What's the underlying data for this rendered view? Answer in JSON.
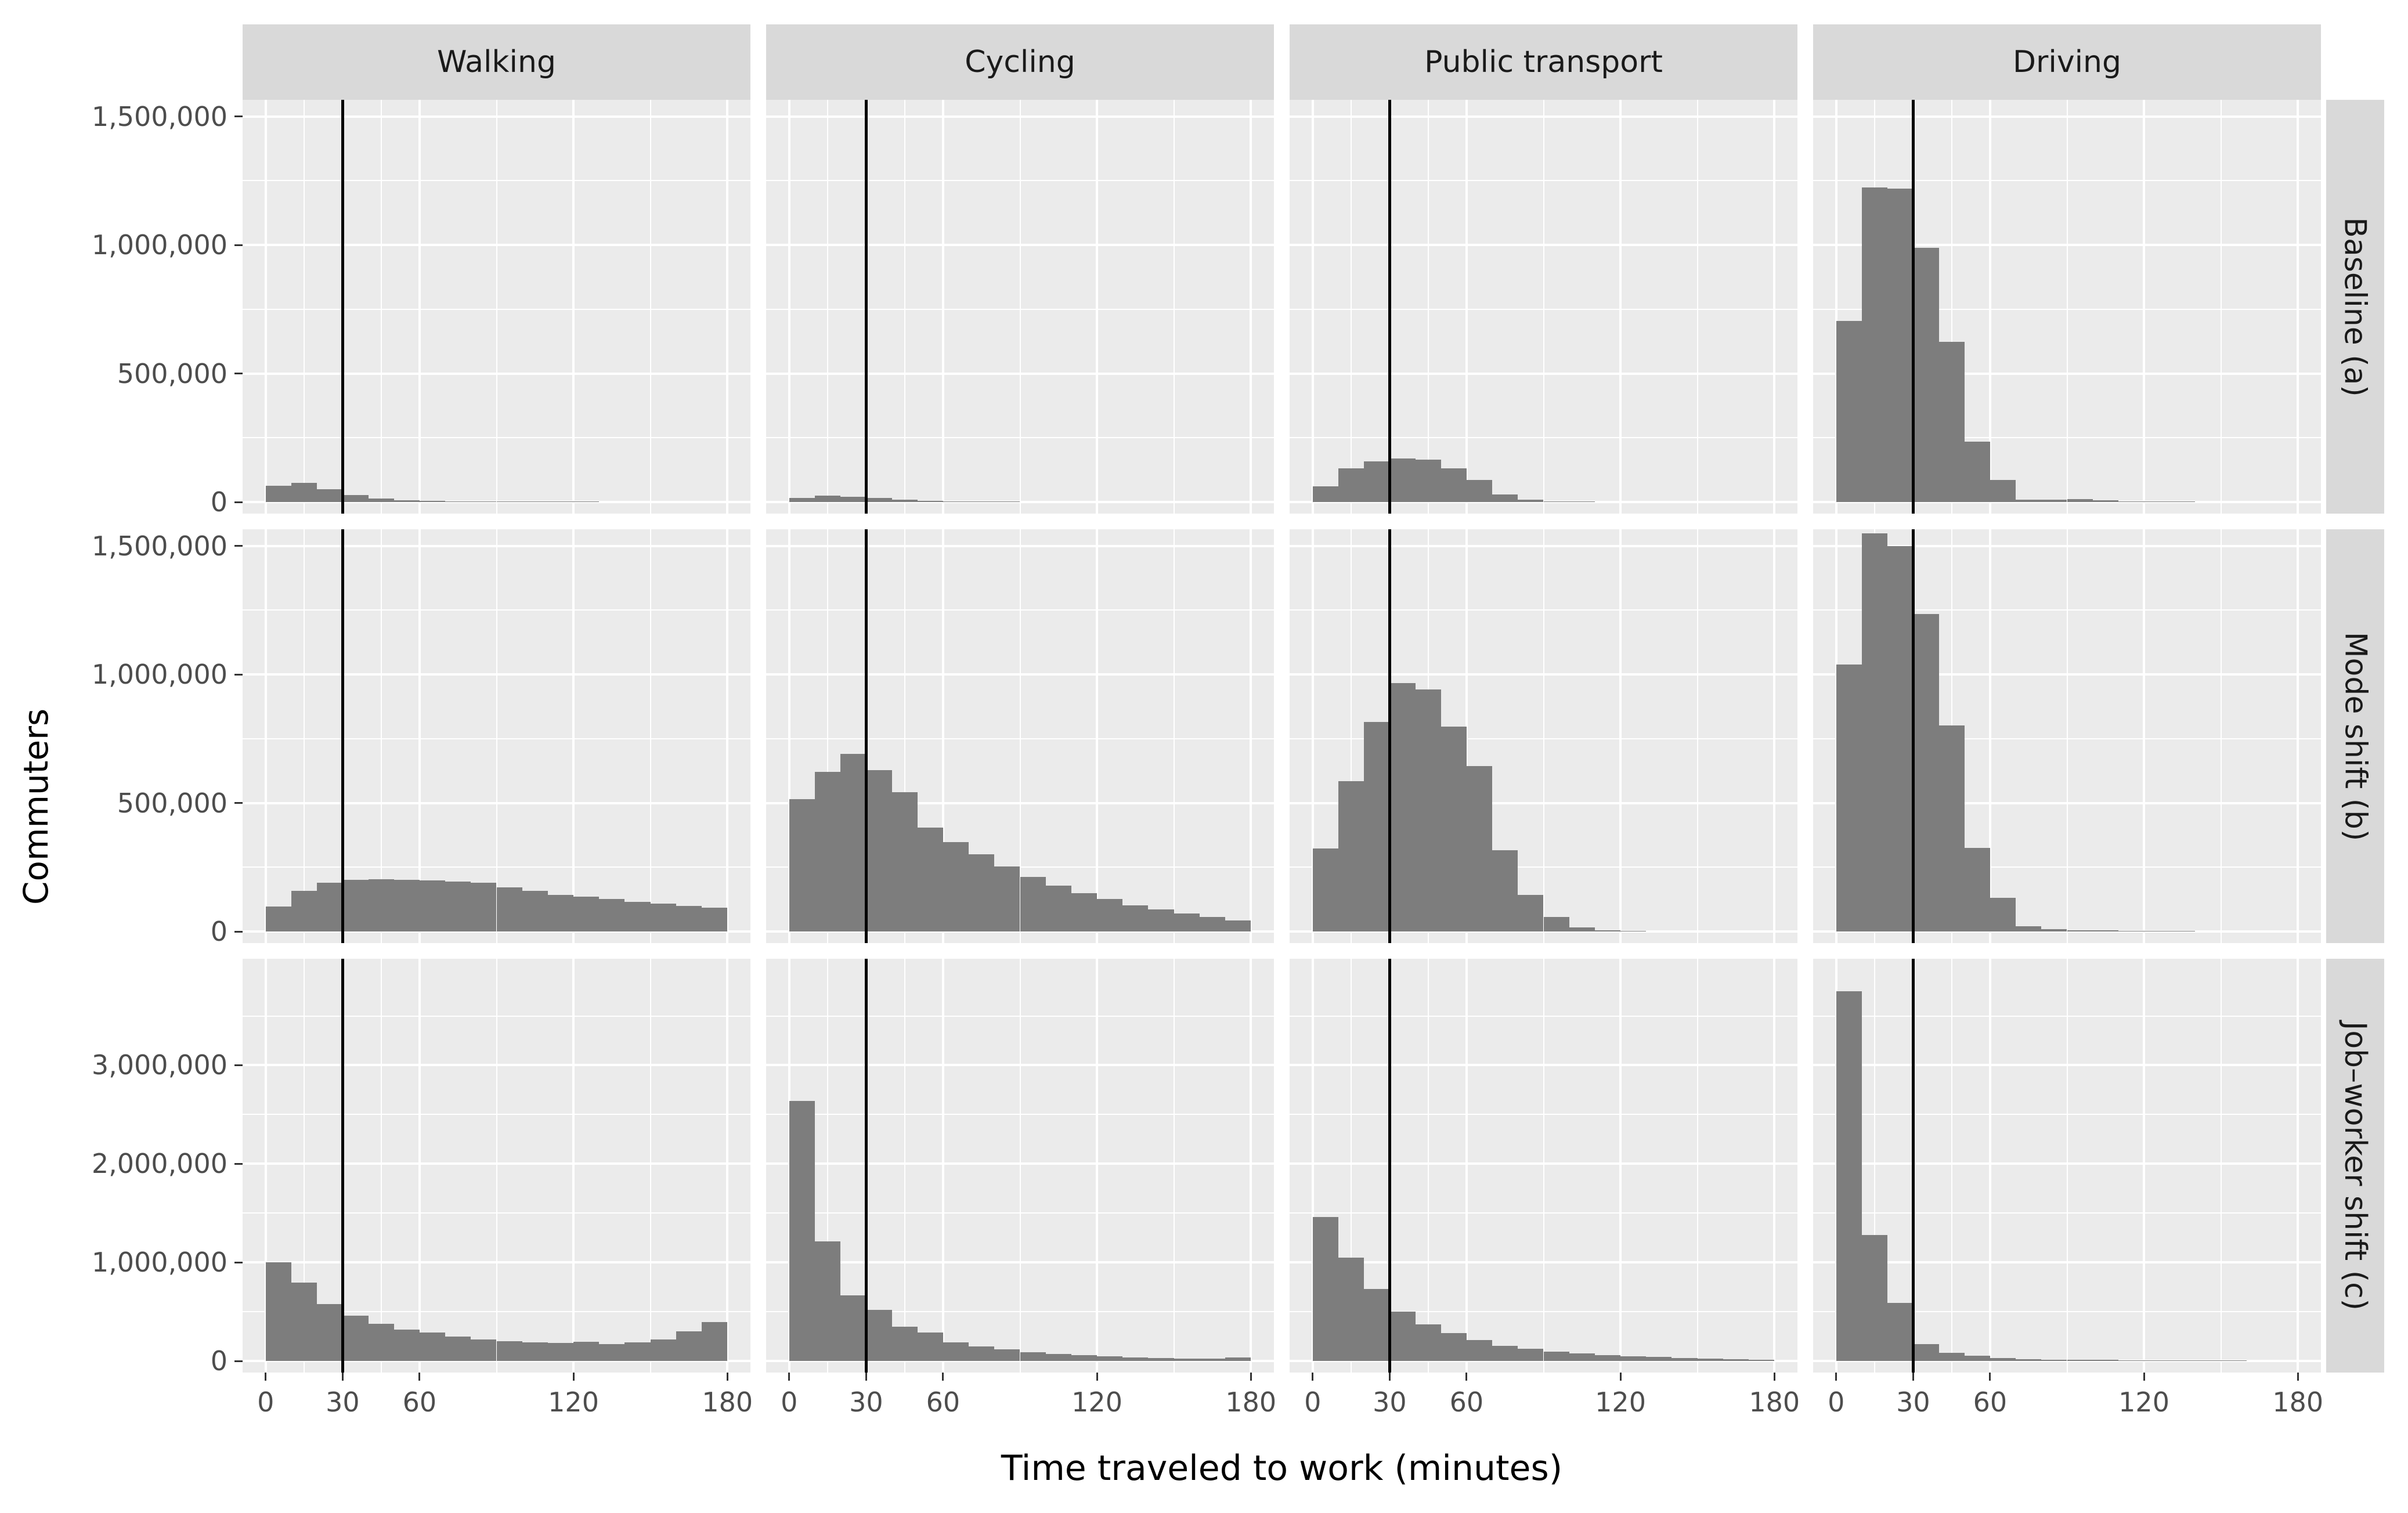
{
  "chart_data": {
    "type": "bar",
    "subtype": "faceted-histogram-grid",
    "title": "",
    "xlabel": "Time traveled to work (minutes)",
    "ylabel": "Commuters",
    "x_tick_values": [
      0,
      30,
      60,
      120,
      180
    ],
    "x_tick_labels": [
      "0",
      "30",
      "60",
      "120",
      "180"
    ],
    "x_minor_gridlines": [
      15,
      45,
      90,
      150
    ],
    "x_axis_range": [
      -9,
      189
    ],
    "bin_start_minutes": 0,
    "bin_width_minutes": 10,
    "bin_count": 18,
    "reference_line_x": 30,
    "grid": "on",
    "legend": "none",
    "columns": [
      "Walking",
      "Cycling",
      "Public transport",
      "Driving"
    ],
    "rows": [
      {
        "label": "Baseline (a)",
        "y_tick_values": [
          0,
          500000,
          1000000,
          1500000
        ],
        "y_tick_labels": [
          "0",
          "500,000",
          "1,000,000",
          "1,500,000"
        ],
        "y_minor_gridlines": [
          250000,
          750000,
          1250000
        ],
        "y_top": 1565000,
        "series": [
          {
            "name": "Walking",
            "values": [
              64000,
              75000,
              50000,
              27000,
              14000,
              7000,
              5000,
              3000,
              2500,
              2000,
              2000,
              1500,
              1500,
              1000,
              1000,
              1000,
              500,
              500
            ]
          },
          {
            "name": "Cycling",
            "values": [
              15000,
              25000,
              21000,
              16000,
              8000,
              5000,
              3000,
              2000,
              1500,
              1000,
              1000,
              500,
              500,
              500,
              500,
              250,
              250,
              250
            ]
          },
          {
            "name": "Public transport",
            "values": [
              60000,
              130000,
              158000,
              170000,
              165000,
              130000,
              85000,
              30000,
              8000,
              3000,
              2000,
              1000,
              500,
              500,
              250,
              250,
              250,
              250
            ]
          },
          {
            "name": "Driving",
            "values": [
              705000,
              1225000,
              1220000,
              990000,
              623000,
              234000,
              85000,
              8000,
              10000,
              12000,
              6000,
              3000,
              2000,
              2000,
              1000,
              1000,
              1000,
              500
            ]
          }
        ]
      },
      {
        "label": "Mode shift (b)",
        "y_tick_values": [
          0,
          500000,
          1000000,
          1500000
        ],
        "y_tick_labels": [
          "0",
          "500,000",
          "1,000,000",
          "1,500,000"
        ],
        "y_minor_gridlines": [
          250000,
          750000,
          1250000
        ],
        "y_top": 1565000,
        "series": [
          {
            "name": "Walking",
            "values": [
              97000,
              158000,
              190000,
              201000,
              204000,
              202000,
              199000,
              195000,
              190000,
              172000,
              157000,
              143000,
              135000,
              126000,
              116000,
              108000,
              100000,
              93000
            ]
          },
          {
            "name": "Cycling",
            "values": [
              515000,
              620000,
              692000,
              628000,
              542000,
              405000,
              347000,
              300000,
              253000,
              213000,
              178000,
              149000,
              126000,
              102000,
              85000,
              70000,
              56000,
              44000
            ]
          },
          {
            "name": "Public transport",
            "values": [
              323000,
              585000,
              815000,
              966000,
              942000,
              797000,
              643000,
              317000,
              143000,
              56000,
              15000,
              5000,
              2000,
              1000,
              1000,
              500,
              500,
              500
            ]
          },
          {
            "name": "Driving",
            "values": [
              1038000,
              1550000,
              1500000,
              1236000,
              802000,
              326000,
              131000,
              20000,
              8000,
              5000,
              4000,
              3000,
              2000,
              2000,
              1000,
              1000,
              1000,
              500
            ]
          }
        ]
      },
      {
        "label": "Job–worker shift (c)",
        "y_tick_values": [
          0,
          1000000,
          2000000,
          3000000
        ],
        "y_tick_labels": [
          "0",
          "1,000,000",
          "2,000,000",
          "3,000,000"
        ],
        "y_minor_gridlines": [
          500000,
          1500000,
          2500000,
          3500000
        ],
        "y_top": 4080000,
        "series": [
          {
            "name": "Walking",
            "values": [
              1000000,
              795000,
              578000,
              462000,
              376000,
              318000,
              289000,
              246000,
              217000,
              202000,
              188000,
              182000,
              194000,
              173000,
              188000,
              217000,
              298000,
              396000
            ]
          },
          {
            "name": "Cycling",
            "values": [
              2640000,
              1210000,
              665000,
              520000,
              347000,
              289000,
              188000,
              145000,
              116000,
              87000,
              72000,
              58000,
              46000,
              38000,
              32000,
              26000,
              23000,
              38000
            ]
          },
          {
            "name": "Public transport",
            "values": [
              1460000,
              1050000,
              731000,
              500000,
              370000,
              283000,
              211000,
              153000,
              124000,
              95000,
              75000,
              61000,
              49000,
              40000,
              32000,
              26000,
              20000,
              14000
            ]
          },
          {
            "name": "Driving",
            "values": [
              3750000,
              1280000,
              587000,
              168000,
              81000,
              52000,
              32000,
              20000,
              14000,
              12000,
              9000,
              7000,
              5000,
              4000,
              3000,
              3000,
              2000,
              2000
            ]
          }
        ]
      }
    ],
    "colors": {
      "bar": "#7d7d7d",
      "panel_background": "#ebebeb",
      "strip_background": "#d9d9d9",
      "gridline": "#ffffff",
      "axis_text": "#4d4d4d",
      "strip_text": "#1a1a1a",
      "axis_title": "#000000",
      "reference_line": "#000000"
    }
  }
}
